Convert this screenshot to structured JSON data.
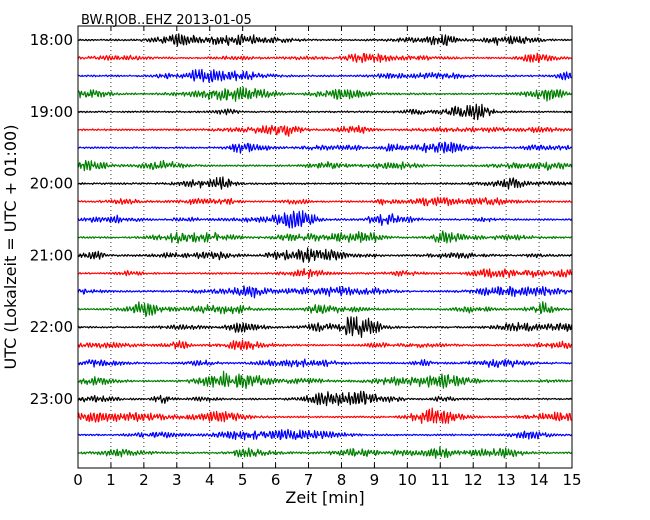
{
  "chart_data": {
    "type": "line",
    "subtype": "dayplot-seismogram",
    "title": "BW.RJOB..EHZ 2013-01-05",
    "xlabel": "Zeit  [min]",
    "ylabel": "UTC (Lokalzeit = UTC + 01:00)",
    "xlim": [
      0,
      15
    ],
    "x_ticks": [
      0,
      1,
      2,
      3,
      4,
      5,
      6,
      7,
      8,
      9,
      10,
      11,
      12,
      13,
      14,
      15
    ],
    "y_tick_labels": [
      "18:00",
      "19:00",
      "20:00",
      "21:00",
      "22:00",
      "23:00"
    ],
    "interval_minutes": 15,
    "start_time": "18:00",
    "row_count": 24,
    "row_colors": [
      "#000000",
      "#ff0000",
      "#0000ff",
      "#008000"
    ],
    "grid": "vertical dotted lines at each minute"
  }
}
